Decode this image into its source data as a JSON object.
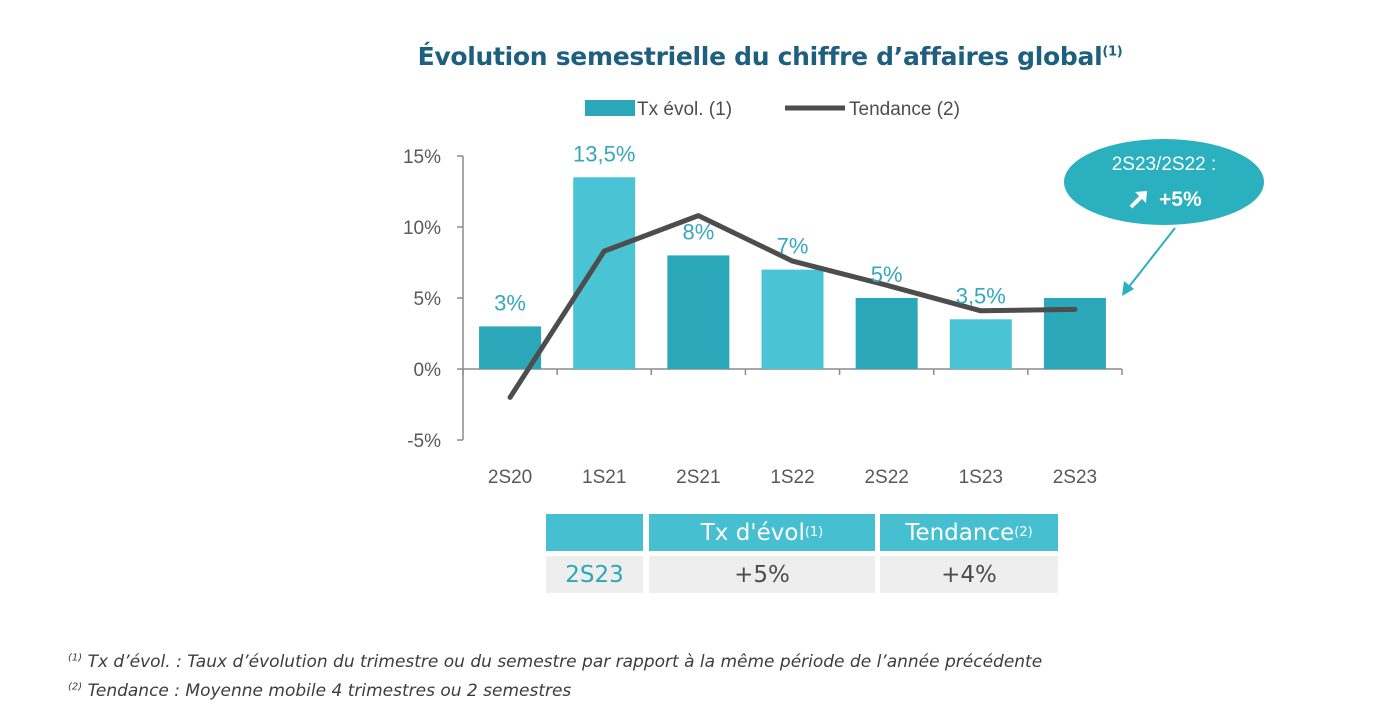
{
  "title": "Évolution semestrielle du chiffre d’affaires global",
  "title_sup": "(1)",
  "legend": {
    "bar_label": "Tx évol. (1)",
    "line_label": "Tendance (2)"
  },
  "colors": {
    "bar_light": "#4ac3d4",
    "bar_dark": "#2aa7b8",
    "line": "#4d4d4d",
    "title": "#1e5f80",
    "label": "#37a7bd",
    "callout": "#2ab0bf"
  },
  "callout": {
    "line1": "2S23/2S22 :",
    "arrow_icon": "up-right-arrow-icon",
    "line2": "+5%"
  },
  "chart_data": {
    "type": "bar",
    "categories": [
      "2S20",
      "1S21",
      "2S21",
      "1S22",
      "2S22",
      "1S23",
      "2S23"
    ],
    "series": [
      {
        "name": "Tx évol. (1)",
        "type": "bar",
        "values": [
          3,
          13.5,
          8,
          7,
          5,
          3.5,
          5
        ],
        "labels": [
          "3%",
          "13,5%",
          "8%",
          "7%",
          "5%",
          "3,5%",
          ""
        ]
      },
      {
        "name": "Tendance (2)",
        "type": "line",
        "values": [
          -2,
          8.3,
          10.8,
          7.6,
          5.9,
          4.1,
          4.2
        ]
      }
    ],
    "ylim": [
      -5,
      15
    ],
    "yticks": [
      -5,
      0,
      5,
      10,
      15
    ],
    "ytick_labels": [
      "-5%",
      "0%",
      "5%",
      "10%",
      "15%"
    ],
    "legend_position": "top",
    "grid": false
  },
  "table": {
    "headers": [
      "",
      "Tx d'évol",
      "Tendance"
    ],
    "header_sups": [
      "",
      "(1)",
      "(2)"
    ],
    "row": [
      "2S23",
      "+5%",
      "+4%"
    ]
  },
  "footnotes": [
    {
      "sup": "(1)",
      "text": "Tx d’évol. : Taux d’évolution du trimestre ou du semestre par rapport à la même période de l’année précédente"
    },
    {
      "sup": "(2)",
      "text": "Tendance : Moyenne mobile 4 trimestres ou 2 semestres"
    }
  ]
}
